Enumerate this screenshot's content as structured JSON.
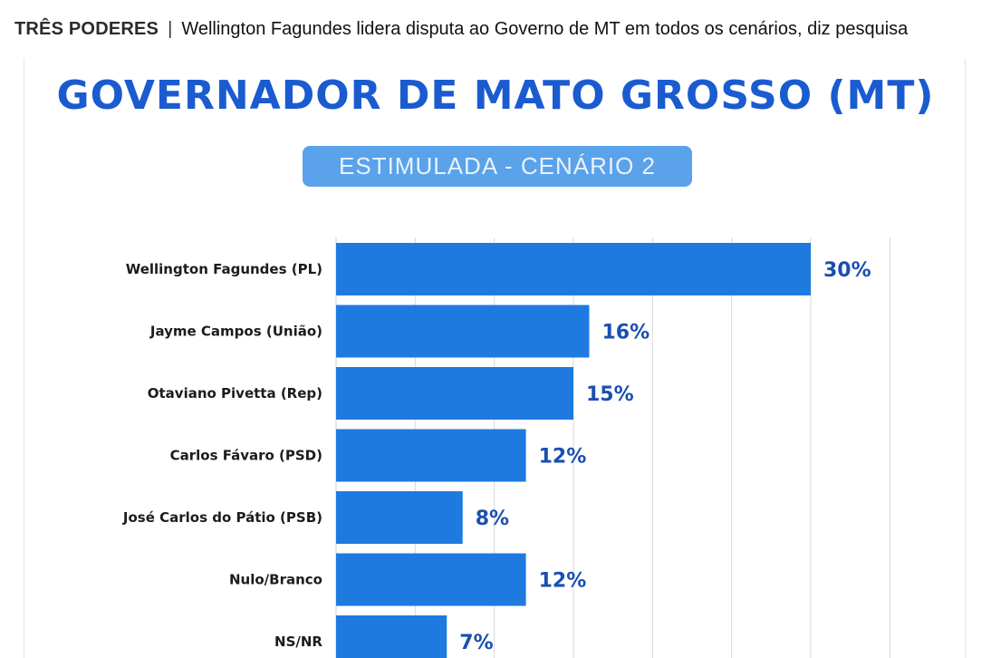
{
  "header": {
    "section": "TRÊS PODERES",
    "separator": "|",
    "headline": "Wellington Fagundes lidera disputa ao Governo de MT em todos os cenários, diz pesquisa"
  },
  "chart_data": {
    "type": "bar",
    "orientation": "horizontal",
    "title": "GOVERNADOR DE MATO GROSSO (MT)",
    "subtitle": "ESTIMULADA - CENÁRIO 2",
    "categories": [
      "Wellington Fagundes (PL)",
      "Jayme Campos (União)",
      "Otaviano Pivetta (Rep)",
      "Carlos Fávaro (PSD)",
      "José Carlos do Pátio (PSB)",
      "Nulo/Branco",
      "NS/NR"
    ],
    "values": [
      30,
      16,
      15,
      12,
      8,
      12,
      7
    ],
    "value_labels": [
      "30%",
      "16%",
      "15%",
      "12%",
      "8%",
      "12%",
      "7%"
    ],
    "unit": "%",
    "xlim": [
      0,
      40
    ],
    "grid": true,
    "colors": {
      "bar": "#1f7ae0",
      "title": "#1a5bd0",
      "value_label": "#1a4fb0",
      "pill": "#5aa2ea"
    }
  }
}
